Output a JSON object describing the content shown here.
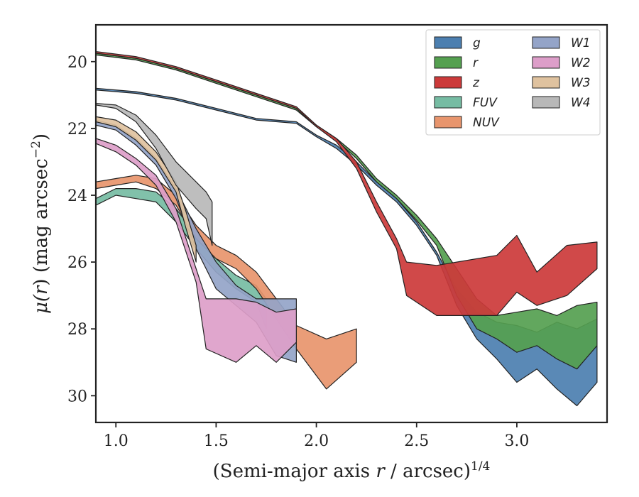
{
  "chart_data": {
    "type": "area",
    "xlabel_prefix": "(Semi-major axis ",
    "xlabel_var": "r",
    "xlabel_mid": " / arcsec)",
    "xlabel_sup": "1/4",
    "ylabel_prefix": "μ(",
    "ylabel_var": "r",
    "ylabel_mid": ") (mag arcsec",
    "ylabel_sup": "−2",
    "ylabel_suffix": ")",
    "xlim": [
      0.9,
      3.45
    ],
    "ylim": [
      30.8,
      18.9
    ],
    "y_inverted": true,
    "xticks": [
      1.0,
      1.5,
      2.0,
      2.5,
      3.0
    ],
    "xtick_labels": [
      "1.0",
      "1.5",
      "2.0",
      "2.5",
      "3.0"
    ],
    "yticks": [
      20,
      22,
      24,
      26,
      28,
      30
    ],
    "ytick_labels": [
      "20",
      "22",
      "24",
      "26",
      "28",
      "30"
    ],
    "grid": false,
    "legend_position": "top-right",
    "legend_columns": 2,
    "series": [
      {
        "name": "g",
        "color": "#4c7fb0",
        "upper": [
          [
            0.9,
            20.8
          ],
          [
            1.1,
            20.9
          ],
          [
            1.3,
            21.1
          ],
          [
            1.5,
            21.4
          ],
          [
            1.7,
            21.7
          ],
          [
            1.9,
            21.8
          ],
          [
            2.0,
            22.2
          ],
          [
            2.1,
            22.5
          ],
          [
            2.2,
            23.0
          ],
          [
            2.3,
            23.6
          ],
          [
            2.4,
            24.1
          ],
          [
            2.5,
            24.8
          ],
          [
            2.6,
            25.7
          ],
          [
            2.7,
            26.8
          ],
          [
            2.8,
            27.5
          ],
          [
            2.9,
            27.8
          ],
          [
            3.0,
            27.9
          ],
          [
            3.1,
            28.1
          ],
          [
            3.2,
            27.8
          ],
          [
            3.3,
            28.0
          ],
          [
            3.4,
            27.7
          ]
        ],
        "lower": [
          [
            0.9,
            20.85
          ],
          [
            1.1,
            20.95
          ],
          [
            1.3,
            21.15
          ],
          [
            1.5,
            21.45
          ],
          [
            1.7,
            21.75
          ],
          [
            1.9,
            21.85
          ],
          [
            2.0,
            22.25
          ],
          [
            2.1,
            22.6
          ],
          [
            2.2,
            23.1
          ],
          [
            2.3,
            23.7
          ],
          [
            2.4,
            24.2
          ],
          [
            2.5,
            24.9
          ],
          [
            2.6,
            25.8
          ],
          [
            2.7,
            27.3
          ],
          [
            2.8,
            28.3
          ],
          [
            2.9,
            28.9
          ],
          [
            3.0,
            29.6
          ],
          [
            3.1,
            29.2
          ],
          [
            3.2,
            29.8
          ],
          [
            3.3,
            30.3
          ],
          [
            3.4,
            29.6
          ]
        ]
      },
      {
        "name": "r",
        "color": "#55a050",
        "upper": [
          [
            0.9,
            19.75
          ],
          [
            1.1,
            19.9
          ],
          [
            1.3,
            20.2
          ],
          [
            1.5,
            20.6
          ],
          [
            1.7,
            21.0
          ],
          [
            1.9,
            21.4
          ],
          [
            2.0,
            21.9
          ],
          [
            2.1,
            22.3
          ],
          [
            2.2,
            22.8
          ],
          [
            2.3,
            23.5
          ],
          [
            2.4,
            24.0
          ],
          [
            2.5,
            24.6
          ],
          [
            2.6,
            25.3
          ],
          [
            2.7,
            26.2
          ],
          [
            2.8,
            27.1
          ],
          [
            2.9,
            27.6
          ],
          [
            3.0,
            27.5
          ],
          [
            3.1,
            27.4
          ],
          [
            3.2,
            27.6
          ],
          [
            3.3,
            27.3
          ],
          [
            3.4,
            27.2
          ]
        ],
        "lower": [
          [
            0.9,
            19.8
          ],
          [
            1.1,
            19.95
          ],
          [
            1.3,
            20.25
          ],
          [
            1.5,
            20.65
          ],
          [
            1.7,
            21.05
          ],
          [
            1.9,
            21.45
          ],
          [
            2.0,
            21.95
          ],
          [
            2.1,
            22.35
          ],
          [
            2.2,
            22.9
          ],
          [
            2.3,
            23.6
          ],
          [
            2.4,
            24.1
          ],
          [
            2.5,
            24.75
          ],
          [
            2.6,
            25.5
          ],
          [
            2.7,
            27.0
          ],
          [
            2.8,
            28.0
          ],
          [
            2.9,
            28.3
          ],
          [
            3.0,
            28.7
          ],
          [
            3.1,
            28.5
          ],
          [
            3.2,
            28.9
          ],
          [
            3.3,
            29.2
          ],
          [
            3.4,
            28.5
          ]
        ]
      },
      {
        "name": "z",
        "color": "#cc3a3a",
        "upper": [
          [
            0.9,
            19.7
          ],
          [
            1.1,
            19.85
          ],
          [
            1.3,
            20.15
          ],
          [
            1.5,
            20.55
          ],
          [
            1.7,
            20.95
          ],
          [
            1.9,
            21.35
          ],
          [
            2.0,
            21.9
          ],
          [
            2.1,
            22.3
          ],
          [
            2.2,
            23.0
          ],
          [
            2.3,
            24.2
          ],
          [
            2.4,
            25.3
          ],
          [
            2.45,
            26.0
          ],
          [
            2.6,
            26.1
          ],
          [
            2.9,
            25.8
          ],
          [
            3.0,
            25.2
          ],
          [
            3.1,
            26.3
          ],
          [
            3.25,
            25.5
          ],
          [
            3.4,
            25.4
          ]
        ],
        "lower": [
          [
            0.9,
            19.75
          ],
          [
            1.1,
            19.9
          ],
          [
            1.3,
            20.2
          ],
          [
            1.5,
            20.6
          ],
          [
            1.7,
            21.0
          ],
          [
            1.9,
            21.4
          ],
          [
            2.0,
            21.95
          ],
          [
            2.1,
            22.4
          ],
          [
            2.2,
            23.2
          ],
          [
            2.3,
            24.5
          ],
          [
            2.4,
            25.6
          ],
          [
            2.45,
            27.0
          ],
          [
            2.6,
            27.6
          ],
          [
            2.9,
            27.6
          ],
          [
            3.0,
            26.9
          ],
          [
            3.1,
            27.3
          ],
          [
            3.25,
            27.0
          ],
          [
            3.4,
            26.2
          ]
        ]
      },
      {
        "name": "FUV",
        "color": "#76bca3",
        "upper": [
          [
            0.9,
            24.1
          ],
          [
            1.0,
            23.8
          ],
          [
            1.1,
            23.8
          ],
          [
            1.2,
            23.9
          ],
          [
            1.3,
            24.4
          ],
          [
            1.4,
            25.2
          ],
          [
            1.5,
            25.9
          ],
          [
            1.6,
            26.4
          ],
          [
            1.7,
            26.7
          ],
          [
            1.75,
            27.1
          ]
        ],
        "lower": [
          [
            0.9,
            24.3
          ],
          [
            1.0,
            24.0
          ],
          [
            1.1,
            24.1
          ],
          [
            1.2,
            24.2
          ],
          [
            1.3,
            24.8
          ],
          [
            1.4,
            25.6
          ],
          [
            1.5,
            26.3
          ],
          [
            1.6,
            26.8
          ],
          [
            1.7,
            27.2
          ],
          [
            1.75,
            28.0
          ]
        ]
      },
      {
        "name": "NUV",
        "color": "#e8956d",
        "upper": [
          [
            0.9,
            23.6
          ],
          [
            1.0,
            23.5
          ],
          [
            1.1,
            23.4
          ],
          [
            1.2,
            23.5
          ],
          [
            1.3,
            24.0
          ],
          [
            1.4,
            24.9
          ],
          [
            1.5,
            25.5
          ],
          [
            1.6,
            25.8
          ],
          [
            1.7,
            26.3
          ],
          [
            1.9,
            27.9
          ],
          [
            2.05,
            28.3
          ],
          [
            2.2,
            28.0
          ]
        ],
        "lower": [
          [
            0.9,
            23.8
          ],
          [
            1.0,
            23.7
          ],
          [
            1.1,
            23.6
          ],
          [
            1.2,
            23.8
          ],
          [
            1.3,
            24.3
          ],
          [
            1.4,
            25.3
          ],
          [
            1.5,
            25.9
          ],
          [
            1.6,
            26.2
          ],
          [
            1.7,
            26.8
          ],
          [
            1.9,
            28.6
          ],
          [
            2.05,
            29.8
          ],
          [
            2.2,
            29.0
          ]
        ]
      },
      {
        "name": "W1",
        "color": "#94a4c8",
        "upper": [
          [
            0.9,
            21.75
          ],
          [
            1.0,
            21.9
          ],
          [
            1.1,
            22.3
          ],
          [
            1.2,
            22.9
          ],
          [
            1.3,
            23.8
          ],
          [
            1.4,
            25.0
          ],
          [
            1.5,
            26.0
          ],
          [
            1.6,
            26.7
          ],
          [
            1.7,
            27.1
          ],
          [
            1.8,
            27.1
          ],
          [
            1.9,
            27.1
          ]
        ],
        "lower": [
          [
            0.9,
            21.9
          ],
          [
            1.0,
            22.05
          ],
          [
            1.1,
            22.5
          ],
          [
            1.2,
            23.1
          ],
          [
            1.3,
            24.1
          ],
          [
            1.4,
            25.6
          ],
          [
            1.5,
            26.8
          ],
          [
            1.6,
            27.3
          ],
          [
            1.7,
            27.8
          ],
          [
            1.8,
            28.8
          ],
          [
            1.9,
            29.0
          ]
        ]
      },
      {
        "name": "W2",
        "color": "#dd9ec9",
        "upper": [
          [
            0.9,
            22.3
          ],
          [
            1.0,
            22.5
          ],
          [
            1.1,
            22.9
          ],
          [
            1.2,
            23.4
          ],
          [
            1.3,
            24.4
          ],
          [
            1.4,
            26.2
          ],
          [
            1.45,
            27.1
          ],
          [
            1.6,
            27.1
          ],
          [
            1.7,
            27.2
          ],
          [
            1.8,
            27.5
          ],
          [
            1.9,
            27.4
          ]
        ],
        "lower": [
          [
            0.9,
            22.45
          ],
          [
            1.0,
            22.7
          ],
          [
            1.1,
            23.1
          ],
          [
            1.2,
            23.7
          ],
          [
            1.3,
            24.8
          ],
          [
            1.4,
            26.6
          ],
          [
            1.45,
            28.6
          ],
          [
            1.6,
            29.0
          ],
          [
            1.7,
            28.5
          ],
          [
            1.8,
            29.0
          ],
          [
            1.9,
            28.4
          ]
        ]
      },
      {
        "name": "W3",
        "color": "#dfc29f",
        "upper": [
          [
            0.9,
            21.65
          ],
          [
            1.0,
            21.75
          ],
          [
            1.1,
            22.1
          ],
          [
            1.2,
            22.7
          ],
          [
            1.3,
            23.6
          ],
          [
            1.35,
            24.5
          ],
          [
            1.4,
            25.5
          ]
        ],
        "lower": [
          [
            0.9,
            21.8
          ],
          [
            1.0,
            21.95
          ],
          [
            1.1,
            22.35
          ],
          [
            1.2,
            22.95
          ],
          [
            1.3,
            23.9
          ],
          [
            1.35,
            25.0
          ],
          [
            1.4,
            26.0
          ]
        ]
      },
      {
        "name": "W4",
        "color": "#b8b8b8",
        "upper": [
          [
            0.9,
            21.25
          ],
          [
            1.0,
            21.3
          ],
          [
            1.1,
            21.6
          ],
          [
            1.2,
            22.2
          ],
          [
            1.3,
            23.0
          ],
          [
            1.4,
            23.6
          ],
          [
            1.45,
            23.9
          ],
          [
            1.48,
            24.2
          ]
        ],
        "lower": [
          [
            0.9,
            21.3
          ],
          [
            1.0,
            21.4
          ],
          [
            1.1,
            21.8
          ],
          [
            1.2,
            22.6
          ],
          [
            1.3,
            23.7
          ],
          [
            1.4,
            24.4
          ],
          [
            1.45,
            24.7
          ],
          [
            1.48,
            25.5
          ]
        ]
      }
    ]
  }
}
